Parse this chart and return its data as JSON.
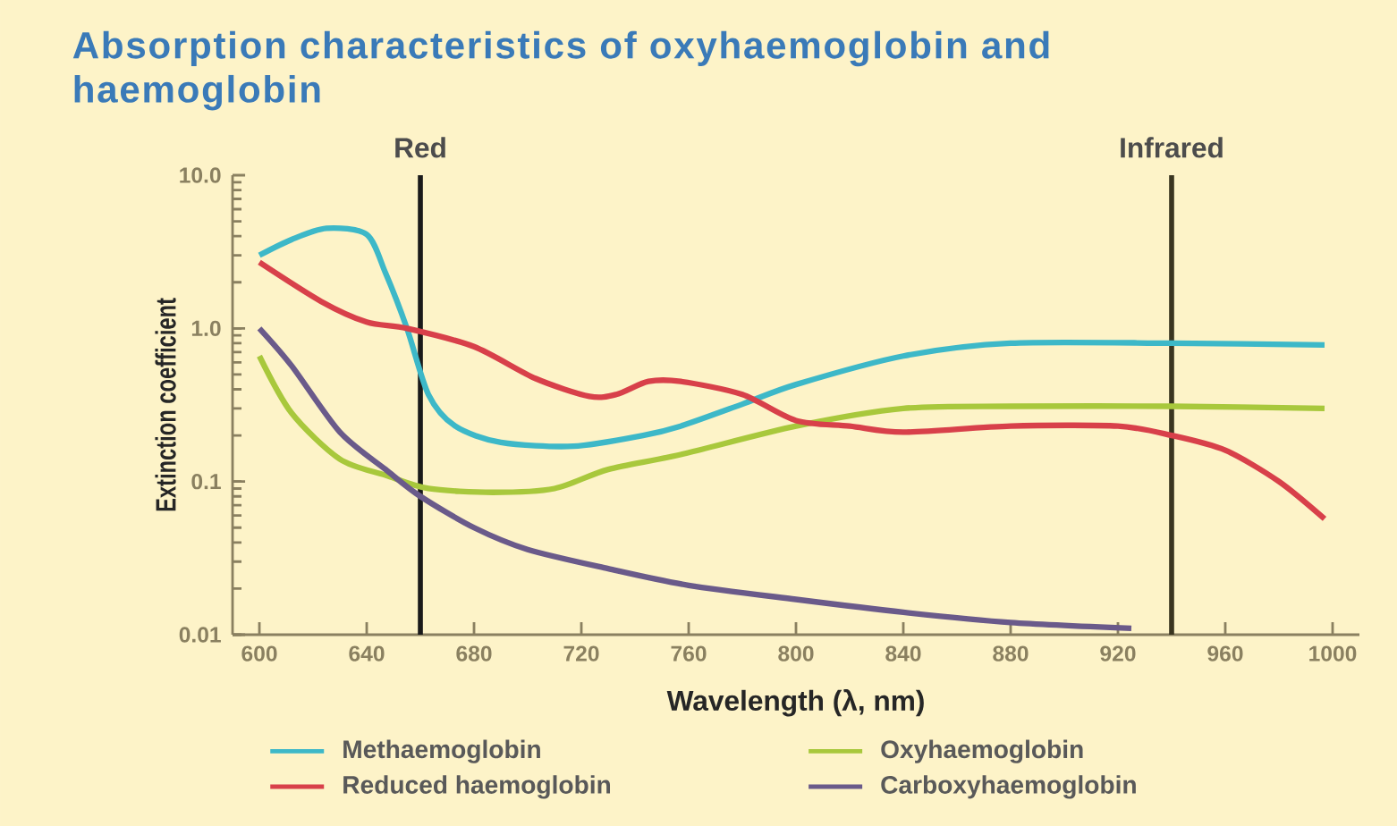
{
  "chart_data": {
    "type": "line",
    "title": "Absorption characteristics of oxyhaemoglobin and haemoglobin",
    "xlabel": "Wavelength (λ, nm)",
    "ylabel": "Extinction coefficient",
    "log": "y",
    "xlim": [
      590,
      1010
    ],
    "xticks": [
      600,
      640,
      680,
      720,
      760,
      800,
      840,
      880,
      920,
      960,
      1000
    ],
    "ylim": [
      0.01,
      10
    ],
    "yticks": [
      {
        "value": 0.01,
        "label": "0.01"
      },
      {
        "value": 0.1,
        "label": "0.1"
      },
      {
        "value": 1,
        "label": "1.0"
      },
      {
        "value": 10,
        "label": "10.0"
      }
    ],
    "legend": "bottom",
    "marker": "none",
    "line_style": "solid",
    "ref_lines": [
      {
        "axis": "x",
        "value": 660,
        "label": "Red",
        "color": "#1a1a1a"
      },
      {
        "axis": "x",
        "value": 940,
        "label": "Infrared",
        "color": "#3a3520"
      }
    ],
    "series": [
      {
        "name": "Methaemoglobin",
        "color": "#3db8c8",
        "x": [
          600,
          612,
          625,
          640,
          647,
          655,
          663,
          673,
          690,
          717,
          743,
          757,
          780,
          800,
          840,
          880,
          940,
          997
        ],
        "values": [
          3.0,
          3.8,
          4.5,
          4.1,
          2.3,
          1.0,
          0.37,
          0.23,
          0.18,
          0.17,
          0.2,
          0.23,
          0.32,
          0.43,
          0.66,
          0.8,
          0.8,
          0.78
        ]
      },
      {
        "name": "Oxyhaemoglobin",
        "color": "#a8c83c",
        "x": [
          600,
          612,
          630,
          647,
          663,
          687,
          710,
          730,
          757,
          800,
          840,
          880,
          940,
          997
        ],
        "values": [
          0.66,
          0.28,
          0.14,
          0.11,
          0.09,
          0.085,
          0.09,
          0.12,
          0.15,
          0.23,
          0.3,
          0.31,
          0.31,
          0.3
        ]
      },
      {
        "name": "Reduced haemoglobin",
        "color": "#d8404a",
        "x": [
          600,
          623,
          640,
          655,
          680,
          703,
          723,
          733,
          745,
          757,
          780,
          800,
          820,
          840,
          880,
          920,
          940,
          960,
          980,
          997
        ],
        "values": [
          2.7,
          1.5,
          1.1,
          1.0,
          0.76,
          0.47,
          0.36,
          0.37,
          0.45,
          0.45,
          0.37,
          0.25,
          0.23,
          0.21,
          0.23,
          0.23,
          0.2,
          0.16,
          0.1,
          0.057
        ]
      },
      {
        "name": "Carboxyhaemoglobin",
        "color": "#6a5a8a",
        "x": [
          600,
          612,
          630,
          647,
          660,
          680,
          700,
          730,
          760,
          800,
          840,
          880,
          925
        ],
        "values": [
          1.0,
          0.57,
          0.21,
          0.12,
          0.08,
          0.05,
          0.036,
          0.027,
          0.021,
          0.017,
          0.014,
          0.012,
          0.011
        ]
      }
    ]
  }
}
